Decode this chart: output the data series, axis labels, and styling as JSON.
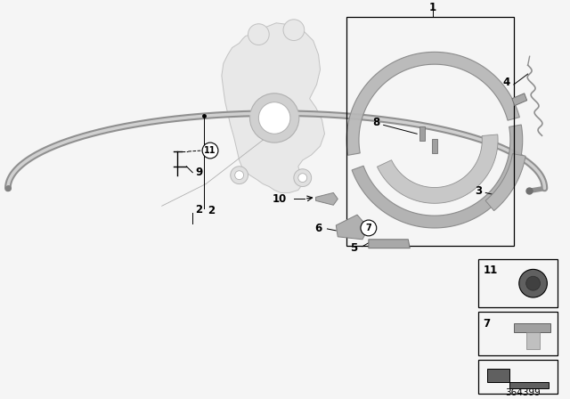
{
  "background_color": "#f5f5f5",
  "fig_width": 6.4,
  "fig_height": 4.48,
  "dpi": 100,
  "part_number": "364399",
  "gray_light": "#d8d8d8",
  "gray_mid": "#b0b0b0",
  "gray_dark": "#808080",
  "gray_shoe": "#a8a8a8",
  "black": "#000000",
  "label_fontsize": 8.5,
  "pn_fontsize": 7.5,
  "cable_color": "#b8b8b8",
  "knuckle_face": "#e0e0e0",
  "knuckle_edge": "#aaaaaa",
  "shoe_face": "#b4b4b4",
  "shoe_edge": "#888888"
}
